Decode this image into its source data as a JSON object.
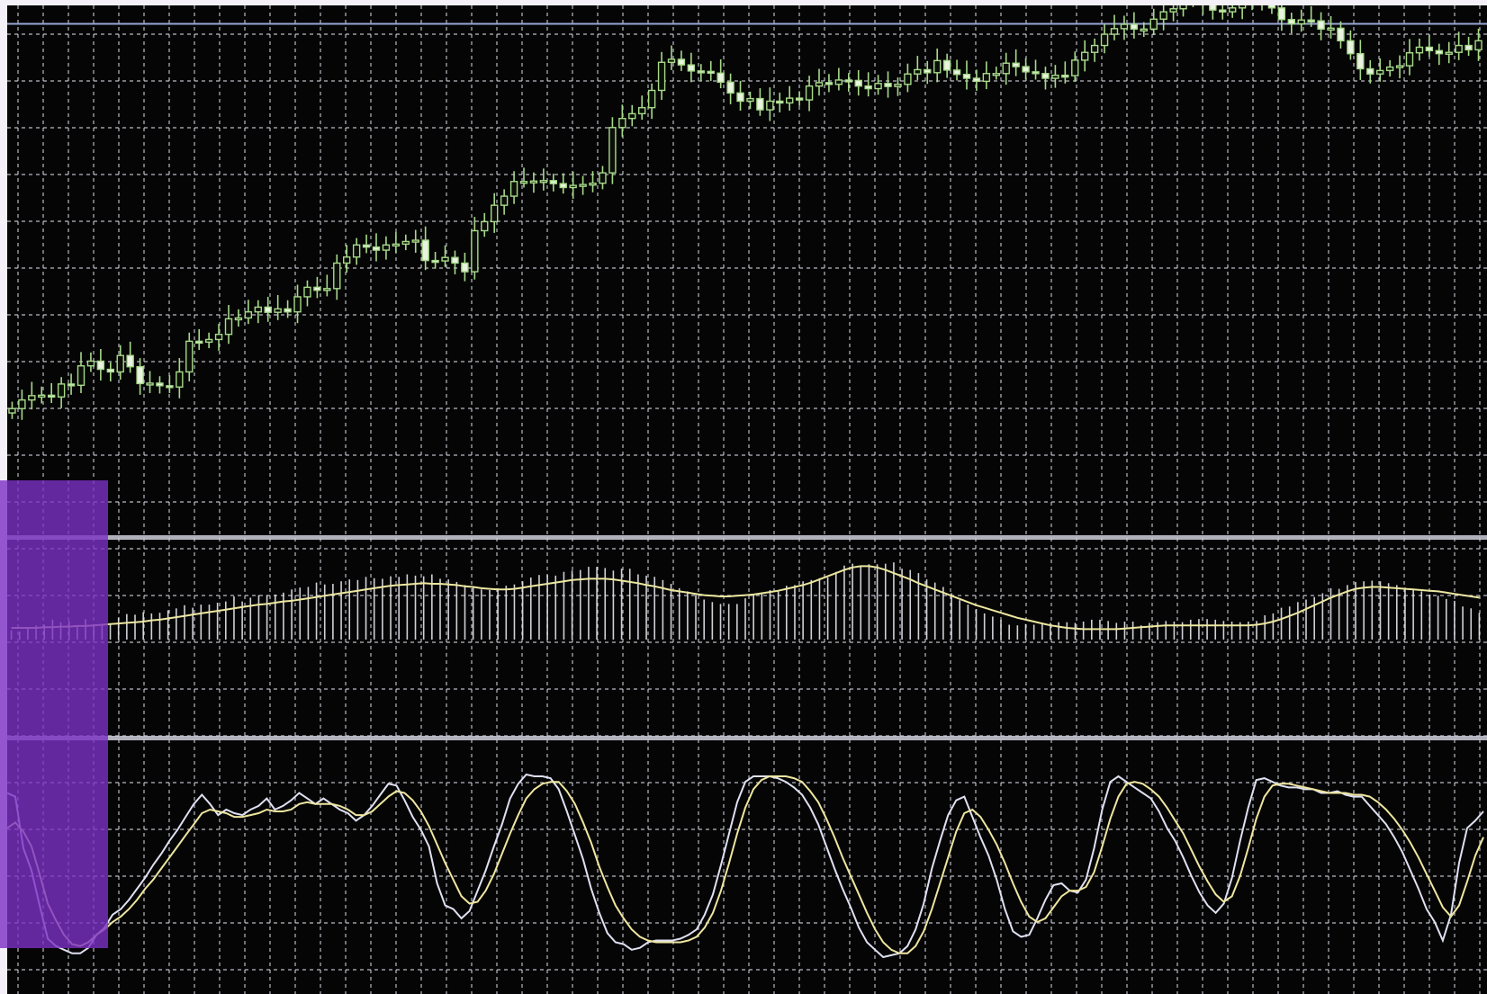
{
  "colors": {
    "background": "#050505",
    "grid": "#d9dbe6",
    "candle": "#a7d98a",
    "candle_body_up": "#0b0f08",
    "candle_body_down": "#e9f3df",
    "signal_line": "#ece7a0",
    "histogram": "#e6e6ee",
    "stoch_main": "#dfe0f2",
    "stoch_signal": "#efe6a0",
    "separator": "#cfd0dc",
    "overlay": "#7a2fc4"
  },
  "chart_data": [
    {
      "type": "candlestick",
      "panel": "price",
      "grid": true,
      "level_lines": [
        97.8
      ],
      "ylim": [
        0,
        100
      ],
      "close": [
        8.7,
        10.7,
        11.7,
        11.8,
        11.4,
        14.4,
        14.1,
        18.6,
        19.7,
        17.8,
        17.2,
        21,
        18.4,
        14.5,
        14.6,
        14,
        13.7,
        17.2,
        24.3,
        24.1,
        24.7,
        25.9,
        29.5,
        29.7,
        31.1,
        32.2,
        31,
        31.8,
        31.1,
        34.6,
        36.8,
        36.1,
        36.5,
        42.4,
        43.8,
        46.6,
        46.1,
        45.4,
        46.6,
        46.8,
        47.4,
        47.7,
        43,
        42.9,
        43.7,
        42.4,
        40.4,
        49.9,
        52,
        55.8,
        57.9,
        61.3,
        61.3,
        61.4,
        61.5,
        60.8,
        59.9,
        60.4,
        60.6,
        60.9,
        63.3,
        73.8,
        75.9,
        77,
        78.4,
        82.4,
        88.9,
        89.6,
        88.3,
        86.9,
        86.8,
        86.4,
        84.3,
        81.8,
        79.9,
        80.5,
        77.9,
        79.9,
        79.5,
        80.6,
        80.2,
        83.4,
        84.2,
        83.8,
        84.8,
        84.7,
        83.4,
        82.8,
        84,
        83.3,
        83.8,
        86.2,
        87.2,
        86.5,
        89.3,
        87.1,
        86.1,
        85.2,
        84.5,
        86.3,
        86.3,
        88.7,
        87.9,
        86.7,
        86.3,
        85.2,
        85.9,
        85.8,
        89.4,
        91.2,
        92.8,
        95.4,
        96.7,
        97.7,
        96.6,
        96.6,
        98.9,
        100.6,
        101.3,
        103.1,
        103.9,
        102.5,
        101,
        100.6,
        101.5,
        103.2,
        103.3,
        102.7,
        101.5,
        98.8,
        97.8,
        98.7,
        98.5,
        96.6,
        96.8,
        93.9,
        90.9,
        87.4,
        86.2,
        87,
        87.8,
        88.1,
        91.1,
        92.4,
        91.6,
        90.9,
        91.2,
        92.8,
        91.8,
        93.9
      ]
    },
    {
      "type": "bar+line",
      "panel": "oscillator",
      "grid": true,
      "ylim": [
        -1,
        1
      ],
      "histogram": [
        -0.14,
        -0.16,
        -0.09,
        -0.06,
        -0.05,
        0.03,
        -0.01,
        0.01,
        -0.06,
        0.04,
        -0.04,
        -0.04,
        -0.03,
        0.06,
        0.12,
        0.11,
        0.15,
        0.13,
        0.14,
        0.18,
        0.21,
        0.26,
        0.22,
        0.27,
        0.27,
        0.3,
        0.32,
        0.4,
        0.32,
        0.38,
        0.42,
        0.42,
        0.43,
        0.46,
        0.51,
        0.54,
        0.55,
        0.62,
        0.59,
        0.6,
        0.64,
        0.67,
        0.66,
        0.71,
        0.69,
        0.68,
        0.72,
        0.71,
        0.75,
        0.73,
        0.72,
        0.75,
        0.68,
        0.67,
        0.63,
        0.58,
        0.56,
        0.51,
        0.5,
        0.53,
        0.57,
        0.59,
        0.64,
        0.7,
        0.74,
        0.74,
        0.73,
        0.79,
        0.81,
        0.82,
        0.87,
        0.87,
        0.85,
        0.81,
        0.84,
        0.84,
        0.75,
        0.73,
        0.71,
        0.66,
        0.6,
        0.53,
        0.48,
        0.42,
        0.35,
        0.31,
        0.28,
        0.28,
        0.28,
        0.37,
        0.43,
        0.46,
        0.5,
        0.5,
        0.57,
        0.58,
        0.64,
        0.66,
        0.69,
        0.7,
        0.79,
        0.89,
        0.92,
        0.89,
        0.91,
        0.91,
        0.92,
        0.94,
        0.84,
        0.82,
        0.77,
        0.67,
        0.62,
        0.55,
        0.45,
        0.34,
        0.27,
        0.2,
        0.13,
        0.08,
        0.03,
        -0.05,
        -0.06,
        -0.04,
        -0.05,
        -0.02,
        -0.02,
        -0.01,
        -0.01,
        -0.02,
        0,
        0.03,
        0.03,
        0.01,
        -0.02,
        0,
        0,
        -0.06,
        -0.02,
        -0.01,
        0.01,
        0,
        -0.01,
        0.03,
        0.04,
        0.04,
        0.03,
        0.01,
        0,
        -0.01,
        0,
        0.01,
        0.1,
        0.13,
        0.22,
        0.24,
        0.31,
        0.35,
        0.39,
        0.45,
        0.53,
        0.52,
        0.58,
        0.63,
        0.64,
        0.65,
        0.64,
        0.61,
        0.58,
        0.54,
        0.52,
        0.48,
        0.43,
        0.41,
        0.36,
        0.33,
        0.24,
        0.21,
        0.14
      ],
      "signal": [
        -0.1,
        -0.1,
        -0.1,
        -0.1,
        -0.09,
        -0.09,
        -0.08,
        -0.08,
        -0.07,
        -0.07,
        -0.06,
        -0.05,
        -0.04,
        -0.03,
        -0.02,
        -0.01,
        0,
        0.02,
        0.03,
        0.05,
        0.07,
        0.09,
        0.11,
        0.13,
        0.15,
        0.17,
        0.19,
        0.21,
        0.23,
        0.25,
        0.27,
        0.28,
        0.3,
        0.32,
        0.33,
        0.35,
        0.37,
        0.39,
        0.41,
        0.43,
        0.45,
        0.47,
        0.49,
        0.51,
        0.53,
        0.55,
        0.57,
        0.58,
        0.59,
        0.6,
        0.61,
        0.6,
        0.6,
        0.59,
        0.58,
        0.56,
        0.55,
        0.53,
        0.52,
        0.51,
        0.51,
        0.52,
        0.54,
        0.56,
        0.58,
        0.6,
        0.62,
        0.64,
        0.66,
        0.67,
        0.68,
        0.68,
        0.68,
        0.67,
        0.65,
        0.63,
        0.61,
        0.58,
        0.56,
        0.53,
        0.5,
        0.48,
        0.46,
        0.44,
        0.42,
        0.41,
        0.4,
        0.4,
        0.41,
        0.42,
        0.43,
        0.45,
        0.47,
        0.49,
        0.52,
        0.55,
        0.58,
        0.62,
        0.67,
        0.72,
        0.77,
        0.82,
        0.86,
        0.88,
        0.88,
        0.86,
        0.82,
        0.77,
        0.72,
        0.67,
        0.61,
        0.56,
        0.51,
        0.46,
        0.41,
        0.36,
        0.31,
        0.26,
        0.22,
        0.18,
        0.14,
        0.1,
        0.06,
        0.03,
        0,
        -0.03,
        -0.06,
        -0.08,
        -0.1,
        -0.11,
        -0.12,
        -0.12,
        -0.12,
        -0.12,
        -0.12,
        -0.11,
        -0.1,
        -0.09,
        -0.08,
        -0.07,
        -0.06,
        -0.06,
        -0.06,
        -0.06,
        -0.06,
        -0.06,
        -0.06,
        -0.06,
        -0.06,
        -0.06,
        -0.06,
        -0.05,
        -0.03,
        0,
        0.04,
        0.09,
        0.14,
        0.2,
        0.26,
        0.32,
        0.38,
        0.43,
        0.48,
        0.52,
        0.54,
        0.55,
        0.55,
        0.54,
        0.53,
        0.52,
        0.51,
        0.5,
        0.49,
        0.48,
        0.46,
        0.44,
        0.42,
        0.4,
        0.38
      ]
    },
    {
      "type": "line",
      "panel": "stochastic",
      "grid": true,
      "ylim": [
        0,
        100
      ],
      "series": [
        {
          "values": [
            90,
            88,
            60,
            48,
            29,
            11,
            7,
            5,
            3,
            3,
            6,
            13,
            17,
            24,
            27,
            32,
            38,
            44,
            51,
            57,
            64,
            70,
            77,
            84,
            89,
            84,
            78,
            81,
            79,
            78,
            81,
            83,
            87,
            81,
            83,
            86,
            90,
            87,
            84,
            87,
            84,
            81,
            79,
            75,
            78,
            83,
            89,
            95,
            94,
            86,
            77,
            70,
            61,
            41,
            29,
            27,
            22,
            26,
            37,
            48,
            61,
            73,
            87,
            95,
            100,
            99,
            99,
            98,
            92,
            80,
            67,
            54,
            38,
            25,
            14,
            9,
            8,
            5,
            6,
            9,
            10,
            10,
            10,
            11,
            13,
            16,
            24,
            35,
            51,
            68,
            85,
            96,
            99,
            99,
            99,
            98,
            96,
            93,
            89,
            82,
            73,
            61,
            49,
            38,
            28,
            17,
            9,
            5,
            1,
            2,
            3,
            7,
            16,
            30,
            49,
            64,
            78,
            86,
            88,
            77,
            66,
            56,
            43,
            27,
            15,
            12,
            13,
            22,
            32,
            40,
            41,
            37,
            36,
            43,
            60,
            81,
            96,
            99,
            96,
            93,
            90,
            87,
            80,
            71,
            64,
            55,
            45,
            36,
            29,
            25,
            30,
            44,
            64,
            82,
            97,
            98,
            96,
            94,
            93,
            93,
            92,
            92,
            90,
            90,
            91,
            89,
            88,
            88,
            83,
            78,
            73,
            66,
            58,
            48,
            38,
            27,
            20,
            10,
            24,
            52,
            71,
            75,
            80
          ]
        },
        {
          "values": [
            71,
            74,
            69,
            61,
            46,
            30,
            21,
            13,
            8,
            7,
            9,
            13,
            16,
            20,
            23,
            27,
            32,
            38,
            43,
            49,
            55,
            61,
            67,
            73,
            79,
            81,
            80,
            79,
            77,
            77,
            78,
            79,
            81,
            80,
            80,
            81,
            84,
            85,
            84,
            84,
            84,
            83,
            81,
            78,
            78,
            80,
            84,
            88,
            91,
            90,
            86,
            80,
            72,
            62,
            52,
            43,
            34,
            30,
            31,
            37,
            46,
            57,
            68,
            78,
            87,
            92,
            95,
            96,
            96,
            91,
            84,
            74,
            63,
            50,
            39,
            29,
            22,
            16,
            12,
            10,
            9,
            9,
            9,
            9,
            10,
            12,
            17,
            25,
            37,
            52,
            68,
            82,
            92,
            97,
            99,
            99,
            99,
            98,
            96,
            91,
            85,
            76,
            66,
            55,
            45,
            35,
            25,
            16,
            9,
            5,
            3,
            3,
            7,
            15,
            27,
            41,
            55,
            69,
            79,
            81,
            77,
            70,
            62,
            52,
            41,
            31,
            23,
            20,
            22,
            28,
            34,
            37,
            37,
            39,
            47,
            61,
            76,
            88,
            95,
            96,
            95,
            92,
            88,
            82,
            75,
            68,
            59,
            50,
            42,
            35,
            31,
            34,
            45,
            60,
            76,
            88,
            94,
            95,
            95,
            94,
            93,
            92,
            91,
            90,
            90,
            90,
            89,
            89,
            88,
            85,
            81,
            76,
            70,
            63,
            55,
            46,
            37,
            28,
            23,
            29,
            42,
            56,
            66
          ]
        }
      ]
    }
  ]
}
